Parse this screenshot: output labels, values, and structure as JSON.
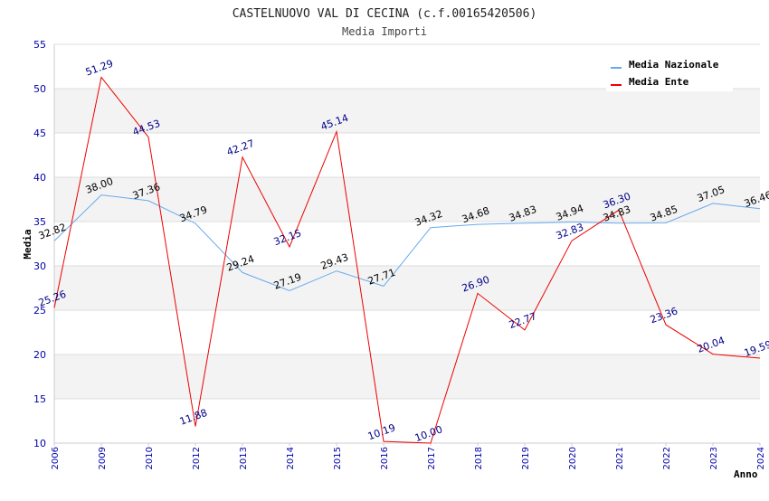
{
  "chart_data": {
    "type": "line",
    "title": "CASTELNUOVO VAL DI CECINA (c.f.00165420506)",
    "subtitle": "Media Importi",
    "xlabel": "Anno",
    "ylabel": "Media",
    "ylim": [
      10,
      55
    ],
    "yticks": [
      "10",
      "15",
      "20",
      "25",
      "30",
      "35",
      "40",
      "45",
      "50",
      "55"
    ],
    "categories": [
      "2006",
      "2009",
      "2010",
      "2012",
      "2013",
      "2014",
      "2015",
      "2016",
      "2017",
      "2018",
      "2019",
      "2020",
      "2021",
      "2022",
      "2023",
      "2024"
    ],
    "series": [
      {
        "name": "Media Nazionale",
        "color": "#66aaee",
        "label_color": "#000000",
        "values": [
          32.82,
          38.0,
          37.36,
          34.79,
          29.24,
          27.19,
          29.43,
          27.71,
          34.32,
          34.68,
          34.83,
          34.94,
          34.83,
          34.85,
          37.05,
          36.46
        ],
        "labels": [
          "32.82",
          "38.00",
          "37.36",
          "34.79",
          "29.24",
          "27.19",
          "29.43",
          "27.71",
          "34.32",
          "34.68",
          "34.83",
          "34.94",
          "34.83",
          "34.85",
          "37.05",
          "36.46"
        ]
      },
      {
        "name": "Media Ente",
        "color": "#ee0000",
        "label_color": "#000088",
        "values": [
          25.26,
          51.29,
          44.53,
          11.88,
          42.27,
          32.15,
          45.14,
          10.19,
          10.0,
          26.9,
          22.77,
          32.83,
          36.3,
          23.36,
          20.04,
          19.59
        ],
        "labels": [
          "25.26",
          "51.29",
          "44.53",
          "11.88",
          "42.27",
          "32.15",
          "45.14",
          "10.19",
          "10.00",
          "26.90",
          "22.77",
          "32.83",
          "36.30",
          "23.36",
          "20.04",
          "19.59"
        ]
      }
    ],
    "legend_position": "top-right",
    "grid": true
  }
}
